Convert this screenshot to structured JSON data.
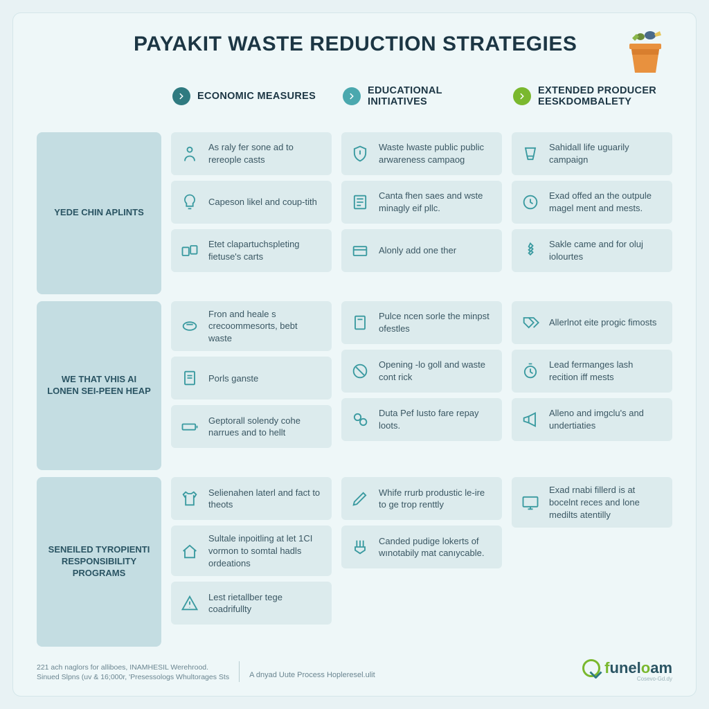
{
  "title": "PAYAKIT WASTE REDUCTION STRATEGIES",
  "colors": {
    "bg": "#e8f2f4",
    "frame": "#eef7f8",
    "row_label_bg": "#c4dde2",
    "item_bg": "#dcebed",
    "icon_color": "#3a9aa0",
    "title_color": "#1c3644",
    "text_color": "#3a5763",
    "chevron_colors": [
      "#2f7a80",
      "#4aa8ae",
      "#7ab82e"
    ]
  },
  "columns": [
    {
      "header": "ECONOMIC MEASURES"
    },
    {
      "header": "EDUCATIONAL INITIATIVES"
    },
    {
      "header": "EXTENDED PRODUCER EESKDOMBALETY"
    }
  ],
  "rows": [
    {
      "label": "YEDE CHIN APLINTS",
      "cells": [
        [
          {
            "icon": "person",
            "text": "As raly fer sone ad to rereople casts"
          },
          {
            "icon": "bulb",
            "text": "Capeson likel and coup-tith"
          },
          {
            "icon": "cards",
            "text": "Etet clapartuchspleting fietuse's carts"
          }
        ],
        [
          {
            "icon": "shield",
            "text": "Waste lwaste public public arwareness campaog"
          },
          {
            "icon": "note",
            "text": "Canta fhen saes and wste minagly eif pllc."
          },
          {
            "icon": "card",
            "text": "Alonly add one ther"
          }
        ],
        [
          {
            "icon": "cup",
            "text": "Sahidall life uguarily campaign"
          },
          {
            "icon": "clock",
            "text": "Exad offed an the outpule magel ment and mests."
          },
          {
            "icon": "screw",
            "text": "Sakle came and for oluj iolourtes"
          }
        ]
      ]
    },
    {
      "label": "WE THAT VHIS AI LONEN SEI-PEEN HEAP",
      "cells": [
        [
          {
            "icon": "badge",
            "text": "Fron and heale s crecoommesorts, bebt waste"
          },
          {
            "icon": "doc",
            "text": "Porls ganste"
          },
          {
            "icon": "battery",
            "text": "Geptorall solendy cohe narrues and to hellt"
          }
        ],
        [
          {
            "icon": "page",
            "text": "Pulce ncen sorle the minpst ofestles"
          },
          {
            "icon": "noentry",
            "text": "Opening -lo goll and waste cont rick"
          },
          {
            "icon": "pills",
            "text": "Duta Pef Iusto fare repay loots."
          }
        ],
        [
          {
            "icon": "tags",
            "text": "Allerlnot eite progic fimosts"
          },
          {
            "icon": "timer",
            "text": "Lead fermanges lash recition iff mests"
          },
          {
            "icon": "mega",
            "text": "Alleno and imgclu's and undertiaties"
          }
        ]
      ]
    },
    {
      "label": "SENEILED TYROPIENTI RESPONSIBILITY PROGRAMS",
      "cells": [
        [
          {
            "icon": "shirt",
            "text": "Selienahen laterl and fact to theots"
          },
          {
            "icon": "house",
            "text": "Sultale inpoitling at let 1CI vormon to somtal hadls ordeations"
          },
          {
            "icon": "warn",
            "text": "Lest rietallber tege coadrifullty"
          }
        ],
        [
          {
            "icon": "pen",
            "text": "Whife rrurb produstic le-ire to ge trop renttly"
          },
          {
            "icon": "brush",
            "text": "Canded pudige lokerts of wınotabily mat canıycable."
          }
        ],
        [
          {
            "icon": "monitor",
            "text": "Exad rnabi fillerd is at bocelnt reces and lone medilts atentilly"
          }
        ]
      ]
    }
  ],
  "footer": {
    "left_line1": "221 ach naglors for alliboes, INAMHESIL Werehrood.",
    "left_line2": "Sinued Slpns (uv & 16;000r, 'Presessologs Whultorages Sts",
    "mid": "A dnyad Uute Process Hopleresel.ulit",
    "logo_name": "funeloam",
    "logo_sub": "Cosevo-Gd.dy"
  }
}
